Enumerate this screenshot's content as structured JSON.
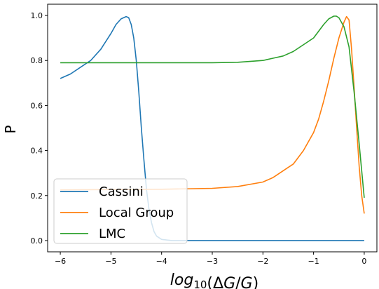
{
  "chart_data": {
    "type": "line",
    "title": "",
    "xlabel": "log10(ΔG/G)",
    "ylabel": "P",
    "xlim": [
      -6.25,
      0.25
    ],
    "ylim": [
      -0.05,
      1.05
    ],
    "xticks": [
      -6,
      -5,
      -4,
      -3,
      -2,
      -1,
      0
    ],
    "xtick_labels": [
      "−6",
      "−5",
      "−4",
      "−3",
      "−2",
      "−1",
      "0"
    ],
    "yticks": [
      0.0,
      0.2,
      0.4,
      0.6,
      0.8,
      1.0
    ],
    "ytick_labels": [
      "0.0",
      "0.2",
      "0.4",
      "0.6",
      "0.8",
      "1.0"
    ],
    "grid": false,
    "legend_position": "lower-left",
    "series": [
      {
        "name": "Cassini",
        "color": "#1f77b4",
        "x": [
          -6.0,
          -5.8,
          -5.6,
          -5.4,
          -5.2,
          -5.0,
          -4.9,
          -4.8,
          -4.7,
          -4.65,
          -4.6,
          -4.55,
          -4.5,
          -4.45,
          -4.4,
          -4.35,
          -4.3,
          -4.25,
          -4.2,
          -4.15,
          -4.1,
          -4.0,
          -3.8,
          -3.0,
          -2.0,
          -1.0,
          0.0
        ],
        "y": [
          0.72,
          0.74,
          0.77,
          0.8,
          0.85,
          0.92,
          0.96,
          0.985,
          0.995,
          0.99,
          0.96,
          0.9,
          0.8,
          0.66,
          0.5,
          0.36,
          0.23,
          0.14,
          0.08,
          0.04,
          0.02,
          0.005,
          0.0,
          0.0,
          0.0,
          0.0,
          0.0
        ]
      },
      {
        "name": "Local Group",
        "color": "#ff7f0e",
        "x": [
          -6.0,
          -4.0,
          -3.0,
          -2.5,
          -2.0,
          -1.8,
          -1.6,
          -1.4,
          -1.2,
          -1.0,
          -0.9,
          -0.8,
          -0.7,
          -0.6,
          -0.5,
          -0.4,
          -0.35,
          -0.3,
          -0.25,
          -0.2,
          -0.15,
          -0.1,
          -0.05,
          0.0
        ],
        "y": [
          0.225,
          0.228,
          0.232,
          0.24,
          0.26,
          0.28,
          0.31,
          0.34,
          0.4,
          0.48,
          0.54,
          0.62,
          0.71,
          0.81,
          0.9,
          0.97,
          0.995,
          0.98,
          0.85,
          0.68,
          0.5,
          0.33,
          0.2,
          0.12
        ]
      },
      {
        "name": "LMC",
        "color": "#2ca02c",
        "x": [
          -6.0,
          -4.0,
          -3.0,
          -2.5,
          -2.0,
          -1.8,
          -1.6,
          -1.4,
          -1.2,
          -1.0,
          -0.9,
          -0.8,
          -0.7,
          -0.6,
          -0.55,
          -0.5,
          -0.4,
          -0.3,
          -0.2,
          -0.1,
          0.0
        ],
        "y": [
          0.79,
          0.79,
          0.79,
          0.792,
          0.8,
          0.81,
          0.82,
          0.84,
          0.87,
          0.9,
          0.93,
          0.96,
          0.985,
          0.997,
          0.997,
          0.99,
          0.95,
          0.86,
          0.66,
          0.43,
          0.19
        ]
      }
    ]
  }
}
